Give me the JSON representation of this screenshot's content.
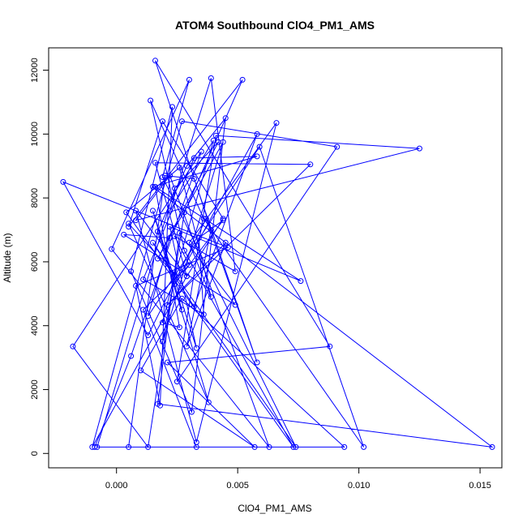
{
  "chart_data": {
    "type": "line",
    "title": "ATOM4 Southbound ClO4_PM1_AMS",
    "xlabel": "ClO4_PM1_AMS",
    "ylabel": "Altitude (m)",
    "xlim": [
      -0.0028,
      0.0159
    ],
    "ylim": [
      -450,
      12700
    ],
    "x_ticks": [
      0.0,
      0.005,
      0.01,
      0.015
    ],
    "x_tick_labels": [
      "0.000",
      "0.005",
      "0.010",
      "0.015"
    ],
    "y_ticks": [
      0,
      2000,
      4000,
      6000,
      8000,
      10000,
      12000
    ],
    "y_tick_labels": [
      "0",
      "2000",
      "4000",
      "6000",
      "8000",
      "10000",
      "12000"
    ],
    "marker": "open-circle",
    "grid": false,
    "legend": "none",
    "series": [
      {
        "color": "#0000ff",
        "x": [
          -0.0009,
          0.0006,
          0.0035,
          -0.0018,
          0.0013,
          0.0028,
          0.0052,
          0.0005,
          0.0019,
          0.0044,
          0.0029,
          -0.001,
          0.0027,
          0.0091,
          0.0025,
          0.0041,
          0.0125,
          0.0008,
          0.0022,
          0.0063,
          -0.0002,
          0.003,
          0.0019,
          0.0074,
          0.0015,
          0.0032,
          0.0058,
          0.0024,
          0.0044,
          0.0034,
          0.0036,
          0.0011,
          0.0032,
          0.0058,
          0.0015,
          0.0155,
          0.0017,
          0.0026,
          0.0049,
          0.0003,
          0.0022,
          0.0013,
          0.0059,
          0.0102,
          0.0036,
          0.0014,
          0.0028,
          0.0073,
          0.0004,
          0.0026,
          0.0039,
          0.003,
          0.0066,
          0.0033,
          0.0008,
          0.0029,
          0.0016,
          0.008,
          0.0021,
          0.0045,
          0.0029,
          0.0039,
          0.0016,
          0.0088,
          0.0021,
          0.0057,
          0.001,
          0.0027,
          0.0094,
          -0.0008,
          0.0024,
          0.0042,
          0.0017,
          0.0044,
          0.0019,
          0.0024,
          0.004,
          0.0022,
          0.0039,
          0.0049,
          0.0024,
          0.003,
          0.0011,
          0.0033,
          0.0005,
          0.002,
          0.0032,
          0.0058,
          0.0037,
          0.0013,
          -0.0022,
          0.0046,
          0.0008,
          0.0018,
          0.0023,
          0.0006,
          0.0031,
          0.0045,
          0.0029,
          0.0017,
          0.0038,
          0.0005,
          0.0024,
          0.0019,
          0.0026,
          0.0016,
          0.0076,
          0.0022,
          0.0033,
          0.0015,
          0.0027
        ],
        "y": [
          200,
          3050,
          9450,
          3350,
          200,
          7550,
          11700,
          7100,
          10400,
          7350,
          5550,
          200,
          10400,
          9600,
          2250,
          9950,
          9550,
          7300,
          8700,
          200,
          6400,
          11700,
          8650,
          200,
          6600,
          4600,
          10000,
          5300,
          7300,
          6750,
          4350,
          5450,
          9250,
          9300,
          8350,
          200,
          1550,
          6900,
          4650,
          6850,
          6750,
          4300,
          9600,
          200,
          7350,
          11050,
          6350,
          200,
          7550,
          8950,
          4900,
          6600,
          10350,
          350,
          7600,
          5550,
          9100,
          9050,
          4650,
          6600,
          3350,
          7000,
          12300,
          3350,
          2850,
          200,
          2600,
          4850,
          200,
          200,
          8300,
          9750,
          6100,
          9750,
          3500,
          5550,
          9800,
          7600,
          11750,
          5700,
          6800,
          5900,
          4500,
          200,
          200,
          8700,
          8600,
          2850,
          7350,
          3700,
          8500,
          6450,
          5250,
          1500,
          10850,
          5700,
          1300,
          10500,
          9000,
          6950,
          1600,
          7200,
          5600,
          4100,
          3950,
          8350,
          5400,
          7100,
          3300,
          7600,
          4500
        ]
      }
    ]
  }
}
